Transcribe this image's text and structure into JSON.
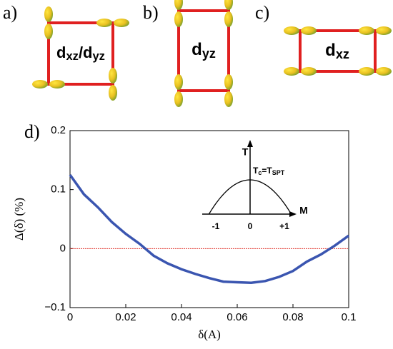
{
  "panels": [
    {
      "label": "a)",
      "orbital": [
        {
          "text": "d",
          "sub": false
        },
        {
          "text": "xz",
          "sub": true
        },
        {
          "text": "/d",
          "sub": false
        },
        {
          "text": "yz",
          "sub": true
        }
      ]
    },
    {
      "label": "b)",
      "orbital": [
        {
          "text": "d",
          "sub": false
        },
        {
          "text": "yz",
          "sub": true
        }
      ]
    },
    {
      "label": "c)",
      "orbital": [
        {
          "text": "d",
          "sub": false
        },
        {
          "text": "xz",
          "sub": true
        }
      ]
    }
  ],
  "chart_data": {
    "type": "line",
    "panel_label": "d)",
    "x_label": "δ(A)",
    "y_label": "Δ(δ) (%)",
    "x": [
      0,
      0.005,
      0.01,
      0.015,
      0.02,
      0.025,
      0.03,
      0.035,
      0.04,
      0.045,
      0.05,
      0.055,
      0.06,
      0.065,
      0.07,
      0.075,
      0.08,
      0.085,
      0.09,
      0.095,
      0.1
    ],
    "series": [
      {
        "color": "#3a55b0",
        "values": [
          0.125,
          0.092,
          0.07,
          0.045,
          0.025,
          0.008,
          -0.012,
          -0.025,
          -0.035,
          -0.043,
          -0.05,
          -0.056,
          -0.057,
          -0.058,
          -0.055,
          -0.048,
          -0.038,
          -0.022,
          -0.01,
          0.005,
          0.022
        ]
      }
    ],
    "xlim": [
      0,
      0.1
    ],
    "xticks": [
      0,
      0.02,
      0.04,
      0.06,
      0.08,
      0.1
    ],
    "ylim": [
      -0.1,
      0.2
    ],
    "yticks": [
      {
        "value": -0.1,
        "label": "−0.1"
      },
      0,
      0.1,
      0.2
    ],
    "reference_line": {
      "y": 0,
      "color": "#e0302a"
    },
    "inset": {
      "y_label": "T",
      "x_label": "M",
      "peak_label": [
        {
          "text": "T",
          "sub": false
        },
        {
          "text": "c",
          "sub": true
        },
        {
          "text": "=T",
          "sub": false
        },
        {
          "text": "SPT",
          "sub": true
        }
      ],
      "xticks": [
        {
          "value": -1,
          "label": "-1"
        },
        0,
        {
          "value": 1,
          "label": "+1"
        }
      ]
    }
  }
}
